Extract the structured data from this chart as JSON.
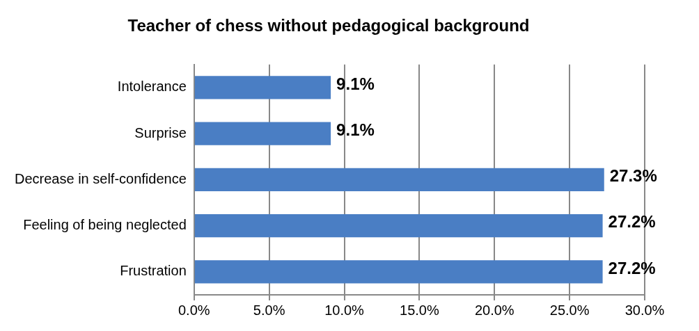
{
  "chart_data": {
    "type": "bar",
    "orientation": "horizontal",
    "title": "Teacher of chess without pedagogical background",
    "categories": [
      "Intolerance",
      "Surprise",
      "Decrease in self-confidence",
      "Feeling of being neglected",
      "Frustration"
    ],
    "values": [
      9.1,
      9.1,
      27.3,
      27.2,
      27.2
    ],
    "value_labels": [
      "9.1%",
      "9.1%",
      "27.3%",
      "27.2%",
      "27.2%"
    ],
    "color": "#4a7ec4",
    "xlim": [
      0,
      30
    ],
    "xticks": [
      {
        "value": 0,
        "label": "0.0%"
      },
      {
        "value": 5,
        "label": "5.0%"
      },
      {
        "value": 10,
        "label": "10.0%"
      },
      {
        "value": 15,
        "label": "15.0%"
      },
      {
        "value": 20,
        "label": "20.0%"
      },
      {
        "value": 25,
        "label": "25.0%"
      },
      {
        "value": 30,
        "label": "30.0%"
      }
    ],
    "grid": "x",
    "legend": false
  }
}
